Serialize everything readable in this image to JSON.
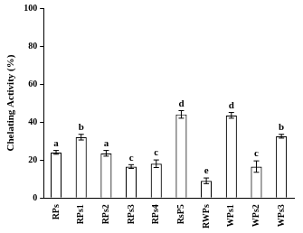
{
  "chart_data": {
    "type": "bar",
    "y_label": "Chelating Activity (%)",
    "categories": [
      "RPs",
      "RPs1",
      "RPs2",
      "RPs3",
      "RPs4",
      "RsP5",
      "RWPs",
      "WPs1",
      "WPs2",
      "WPs3"
    ],
    "values": [
      24,
      32,
      23.5,
      16.5,
      18,
      44,
      9,
      43.5,
      16.5,
      32.5
    ],
    "errors": [
      1,
      1.5,
      1.5,
      1,
      2,
      2,
      1.5,
      1.5,
      3,
      1
    ],
    "annotations": [
      "a",
      "b",
      "a",
      "c",
      "c",
      "d",
      "e",
      "d",
      "c",
      "b"
    ],
    "color": "#ffffff",
    "ylim": [
      0,
      100
    ],
    "yticks": [
      0,
      20,
      40,
      60,
      80,
      100
    ],
    "grid": false
  }
}
